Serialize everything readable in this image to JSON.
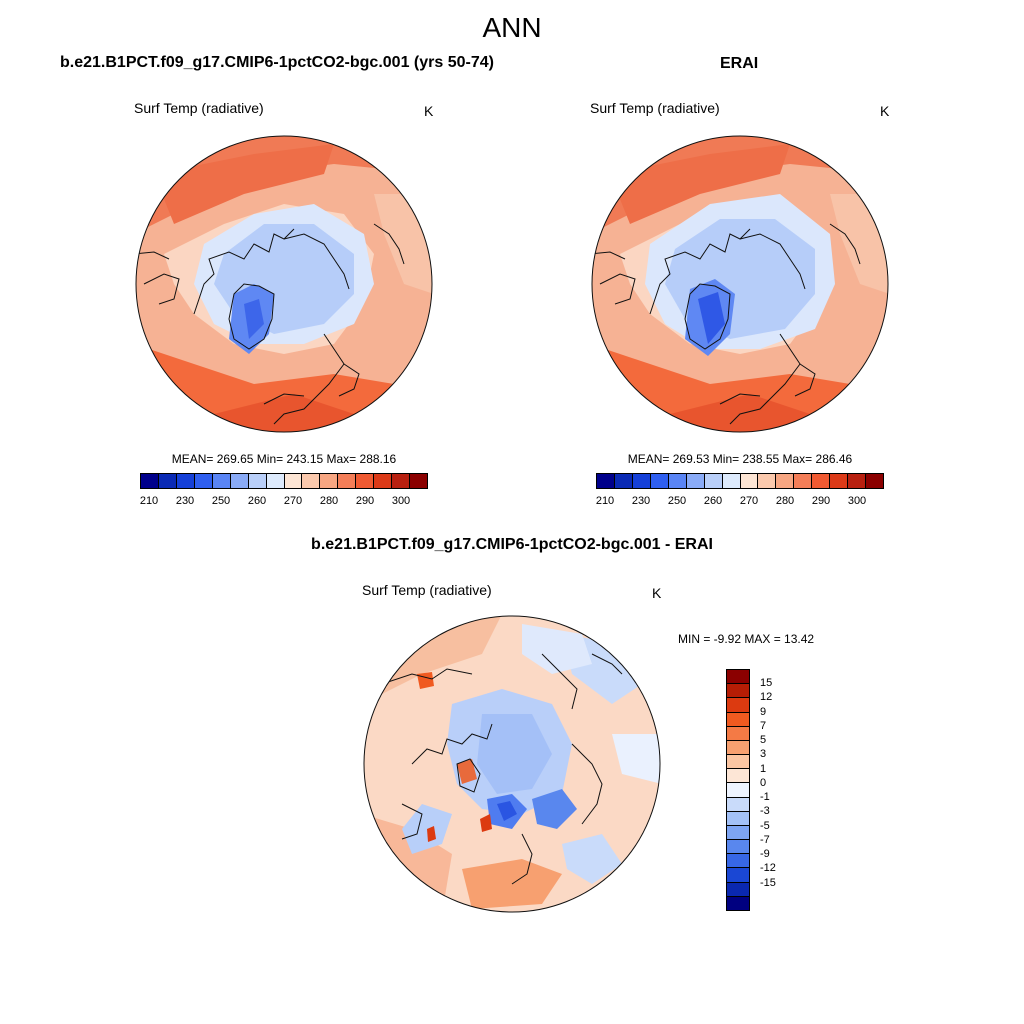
{
  "page": {
    "title": "ANN"
  },
  "panels": [
    {
      "title": "b.e21.B1PCT.f09_g17.CMIP6-1pctCO2-bgc.001 (yrs 50-74)",
      "variable": "Surf Temp (radiative)",
      "units": "K",
      "stats": "MEAN= 269.65  Min= 243.15  Max= 288.16"
    },
    {
      "title": "ERAI",
      "variable": "Surf Temp (radiative)",
      "units": "K",
      "stats": "MEAN= 269.53  Min= 238.55  Max= 286.46"
    },
    {
      "title": "b.e21.B1PCT.f09_g17.CMIP6-1pctCO2-bgc.001 - ERAI",
      "variable": "Surf Temp (radiative)",
      "units": "K",
      "stats": "MIN =  -9.92 MAX =  13.42"
    }
  ],
  "colors": {
    "abs_scale": [
      "#00008b",
      "#0a2ab5",
      "#1540d8",
      "#2f5ff0",
      "#5a85f5",
      "#8aabf7",
      "#b9cff9",
      "#ddeafc",
      "#fde5d4",
      "#fbc9ad",
      "#f7a682",
      "#f47e58",
      "#f05a32",
      "#dc3a18",
      "#b82010",
      "#8b0000"
    ],
    "diff_scale": [
      "#8b0000",
      "#b51d05",
      "#dc3a10",
      "#f05a20",
      "#f47a45",
      "#f7a070",
      "#fbc6a3",
      "#fde6d6",
      "#eef4ff",
      "#c9dbfa",
      "#a3c1f7",
      "#7ea5f3",
      "#5987ee",
      "#3767e6",
      "#1a47d4",
      "#0a28b0",
      "#000080"
    ],
    "ocean_warm": "#f39a76",
    "land_cold": "#aec8f8",
    "ice_sheet": "#4f7cf0",
    "coast": "#111111"
  },
  "chart_data": [
    {
      "type": "heatmap",
      "projection": "north-polar-stereographic",
      "title": "b.e21.B1PCT.f09_g17.CMIP6-1pctCO2-bgc.001 (yrs 50-74)",
      "variable": "Surf Temp (radiative)",
      "units": "K",
      "mean": 269.65,
      "min": 243.15,
      "max": 288.16,
      "colorbar": {
        "orientation": "horizontal",
        "tick_labels": [
          "210",
          "230",
          "250",
          "260",
          "270",
          "280",
          "290",
          "300"
        ],
        "levels": 16
      }
    },
    {
      "type": "heatmap",
      "projection": "north-polar-stereographic",
      "title": "ERAI",
      "variable": "Surf Temp (radiative)",
      "units": "K",
      "mean": 269.53,
      "min": 238.55,
      "max": 286.46,
      "colorbar": {
        "orientation": "horizontal",
        "tick_labels": [
          "210",
          "230",
          "250",
          "260",
          "270",
          "280",
          "290",
          "300"
        ],
        "levels": 16
      }
    },
    {
      "type": "heatmap",
      "projection": "north-polar-stereographic",
      "title": "b.e21.B1PCT.f09_g17.CMIP6-1pctCO2-bgc.001 - ERAI",
      "variable": "Surf Temp (radiative)",
      "units": "K",
      "min": -9.92,
      "max": 13.42,
      "colorbar": {
        "orientation": "vertical",
        "tick_labels": [
          "15",
          "12",
          "9",
          "7",
          "5",
          "3",
          "1",
          "0",
          "-1",
          "-3",
          "-5",
          "-7",
          "-9",
          "-12",
          "-15"
        ],
        "levels": 17
      }
    }
  ]
}
